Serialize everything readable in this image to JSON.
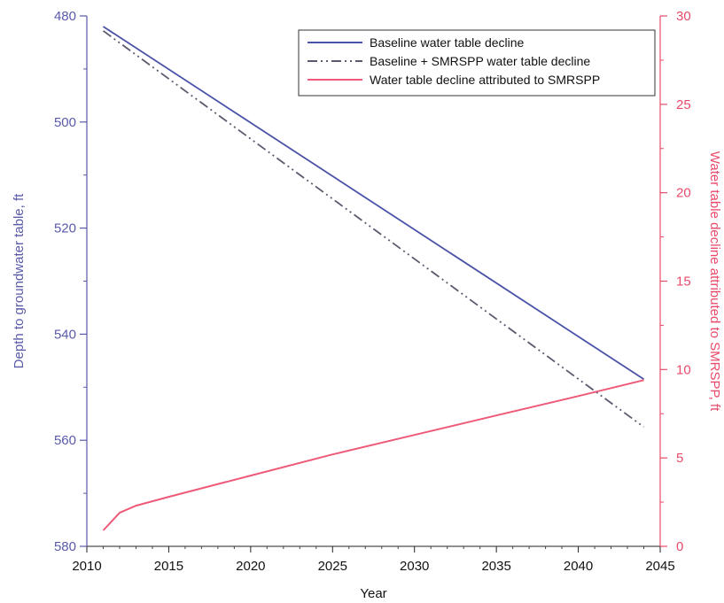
{
  "chart_data": {
    "type": "line",
    "title": "",
    "xlabel": "Year",
    "ylabel_left": "Depth to groundwater table, ft",
    "ylabel_right": "Water table decline attributed to SMRSPP, ft",
    "xlim": [
      2010,
      2045
    ],
    "ylim_left": [
      480,
      580
    ],
    "ylim_left_inverted": true,
    "ylim_right": [
      0,
      30
    ],
    "x_ticks": [
      "2010",
      "2015",
      "2020",
      "2025",
      "2030",
      "2035",
      "2040",
      "2045"
    ],
    "y_left_ticks": [
      "480",
      "500",
      "520",
      "540",
      "560",
      "580"
    ],
    "y_right_ticks": [
      "0",
      "5",
      "10",
      "15",
      "20",
      "25",
      "30"
    ],
    "grid": false,
    "legend_position": "top-right",
    "colors": {
      "left_axis": "#5a5aaa",
      "right_axis": "#e84a6a",
      "baseline": "#4a52a8",
      "smrspp": "#5a5a6e",
      "attributed": "#ee5a78"
    },
    "series": [
      {
        "name": "Baseline water table decline",
        "axis": "left",
        "style": "solid",
        "x": [
          2011,
          2044
        ],
        "y": [
          482,
          548.5
        ]
      },
      {
        "name": "Baseline + SMRSPP water table decline",
        "axis": "left",
        "style": "dash-dot-dot",
        "x": [
          2011,
          2044
        ],
        "y": [
          482.8,
          557.5
        ]
      },
      {
        "name": "Water table decline attributed to SMRSPP",
        "axis": "right",
        "style": "solid",
        "x": [
          2011,
          2012,
          2013,
          2014,
          2015,
          2020,
          2025,
          2030,
          2035,
          2040,
          2044
        ],
        "y": [
          0.9,
          1.9,
          2.3,
          2.55,
          2.8,
          4.0,
          5.2,
          6.3,
          7.4,
          8.5,
          9.4
        ]
      }
    ]
  }
}
